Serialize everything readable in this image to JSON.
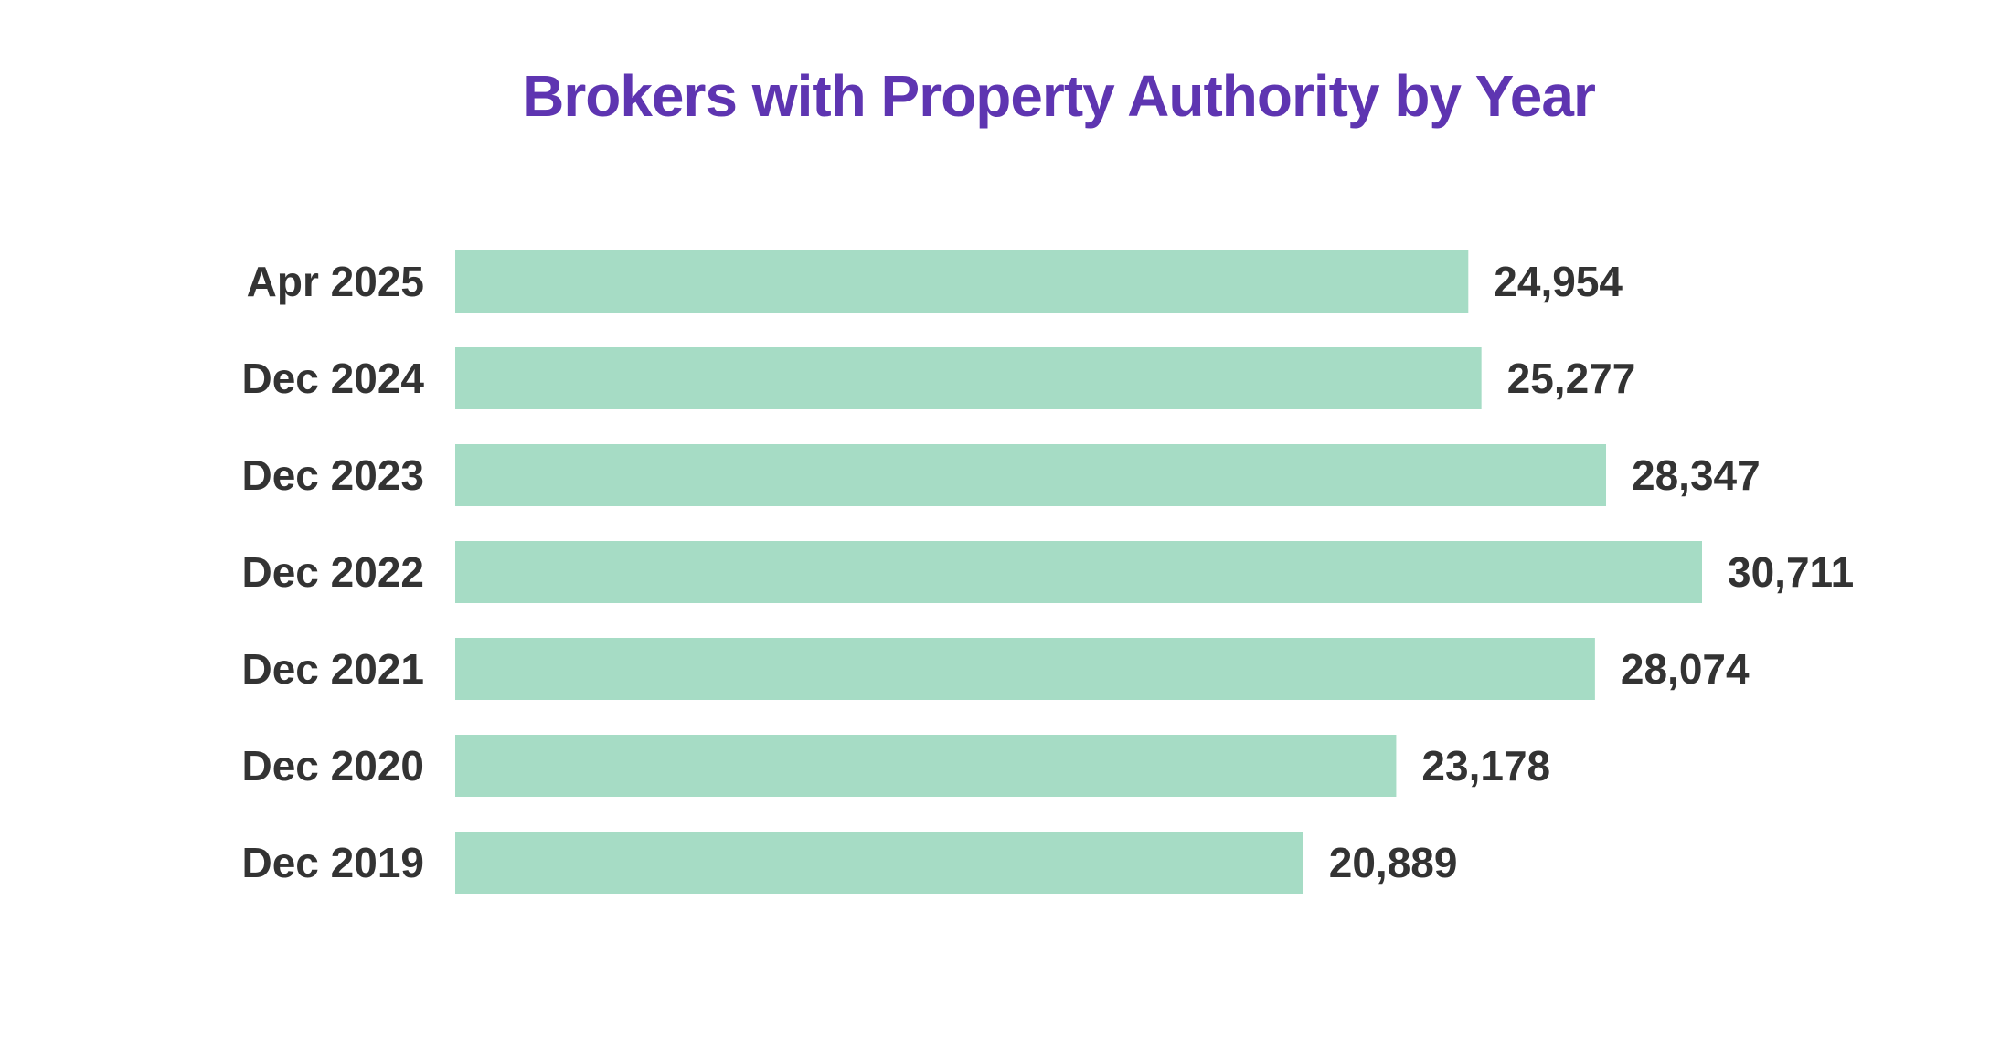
{
  "colors": {
    "title": "#5e35b1",
    "bar": "#a6dcc5",
    "text": "#333333",
    "background": "#ffffff"
  },
  "chart_data": {
    "type": "bar",
    "orientation": "horizontal",
    "title": "Brokers with Property Authority by Year",
    "xlabel": "",
    "ylabel": "",
    "grid": false,
    "categories": [
      "Apr 2025",
      "Dec 2024",
      "Dec 2023",
      "Dec 2022",
      "Dec 2021",
      "Dec 2020",
      "Dec 2019"
    ],
    "values": [
      24954,
      25277,
      28347,
      30711,
      28074,
      23178,
      20889
    ],
    "value_labels": [
      "24,954",
      "25,277",
      "28,347",
      "30,711",
      "28,074",
      "23,178",
      "20,889"
    ],
    "xlim": [
      0,
      30711
    ]
  }
}
